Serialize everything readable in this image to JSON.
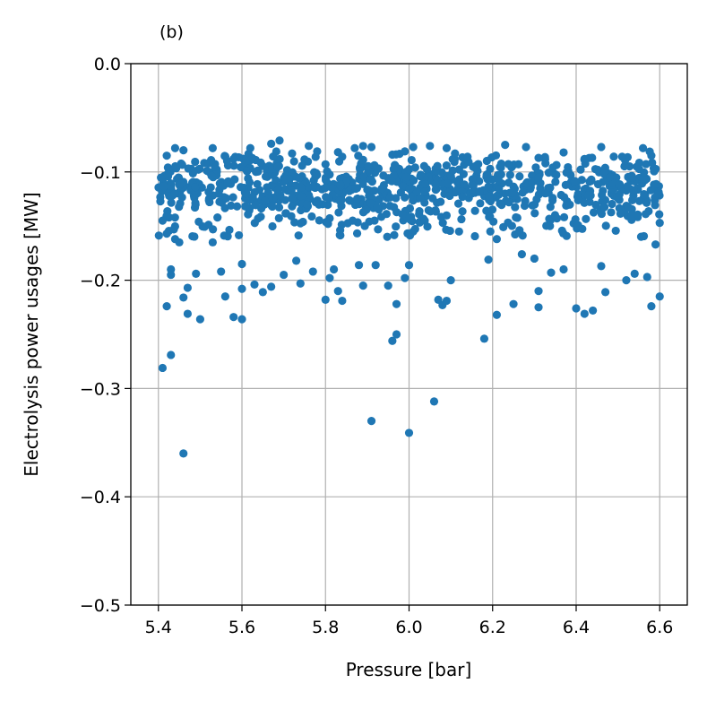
{
  "chart_data": {
    "type": "scatter",
    "panel_label": "(b)",
    "title": "",
    "xlabel": "Pressure [bar]",
    "ylabel": "Electrolysis power usages [MW]",
    "xlim": [
      5.334,
      6.666
    ],
    "ylim": [
      -0.5,
      0.0
    ],
    "xticks": [
      5.4,
      5.6,
      5.8,
      6.0,
      6.2,
      6.4,
      6.6
    ],
    "xtick_labels": [
      "5.4",
      "5.6",
      "5.8",
      "6.0",
      "6.2",
      "6.4",
      "6.6"
    ],
    "yticks": [
      0.0,
      -0.1,
      -0.2,
      -0.3,
      -0.4,
      -0.5
    ],
    "ytick_labels": [
      "0.0",
      "−0.1",
      "−0.2",
      "−0.3",
      "−0.4",
      "−0.5"
    ],
    "grid": true,
    "marker_color": "#1f77b4",
    "series": [
      {
        "points": [
          [
            5.41,
            -0.281
          ],
          [
            5.41,
            -0.145
          ],
          [
            5.42,
            -0.157
          ],
          [
            5.42,
            -0.224
          ],
          [
            5.43,
            -0.19
          ],
          [
            5.43,
            -0.269
          ],
          [
            5.43,
            -0.195
          ],
          [
            5.44,
            -0.162
          ],
          [
            5.45,
            -0.165
          ],
          [
            5.46,
            -0.36
          ],
          [
            5.46,
            -0.216
          ],
          [
            5.47,
            -0.231
          ],
          [
            5.47,
            -0.207
          ],
          [
            5.49,
            -0.194
          ],
          [
            5.5,
            -0.236
          ],
          [
            5.53,
            -0.165
          ],
          [
            5.55,
            -0.192
          ],
          [
            5.56,
            -0.215
          ],
          [
            5.58,
            -0.234
          ],
          [
            5.6,
            -0.236
          ],
          [
            5.6,
            -0.208
          ],
          [
            5.6,
            -0.185
          ],
          [
            5.63,
            -0.204
          ],
          [
            5.65,
            -0.211
          ],
          [
            5.67,
            -0.206
          ],
          [
            5.7,
            -0.195
          ],
          [
            5.73,
            -0.182
          ],
          [
            5.74,
            -0.203
          ],
          [
            5.77,
            -0.192
          ],
          [
            5.8,
            -0.218
          ],
          [
            5.81,
            -0.198
          ],
          [
            5.82,
            -0.19
          ],
          [
            5.83,
            -0.21
          ],
          [
            5.84,
            -0.219
          ],
          [
            5.88,
            -0.186
          ],
          [
            5.89,
            -0.205
          ],
          [
            5.91,
            -0.33
          ],
          [
            5.92,
            -0.186
          ],
          [
            5.95,
            -0.205
          ],
          [
            5.96,
            -0.256
          ],
          [
            5.97,
            -0.25
          ],
          [
            5.97,
            -0.222
          ],
          [
            5.99,
            -0.198
          ],
          [
            6.0,
            -0.341
          ],
          [
            6.0,
            -0.186
          ],
          [
            6.06,
            -0.312
          ],
          [
            6.07,
            -0.218
          ],
          [
            6.08,
            -0.223
          ],
          [
            6.09,
            -0.219
          ],
          [
            6.1,
            -0.2
          ],
          [
            6.18,
            -0.254
          ],
          [
            6.19,
            -0.181
          ],
          [
            6.21,
            -0.232
          ],
          [
            6.21,
            -0.162
          ],
          [
            6.25,
            -0.222
          ],
          [
            6.27,
            -0.176
          ],
          [
            6.3,
            -0.18
          ],
          [
            6.31,
            -0.21
          ],
          [
            6.31,
            -0.225
          ],
          [
            6.34,
            -0.193
          ],
          [
            6.37,
            -0.19
          ],
          [
            6.4,
            -0.226
          ],
          [
            6.42,
            -0.231
          ],
          [
            6.44,
            -0.228
          ],
          [
            6.46,
            -0.187
          ],
          [
            6.47,
            -0.211
          ],
          [
            6.52,
            -0.2
          ],
          [
            6.54,
            -0.194
          ],
          [
            6.57,
            -0.197
          ],
          [
            6.58,
            -0.224
          ],
          [
            6.59,
            -0.167
          ],
          [
            6.6,
            -0.215
          ],
          [
            6.6,
            -0.147
          ],
          [
            5.44,
            -0.078
          ],
          [
            5.46,
            -0.08
          ],
          [
            5.53,
            -0.078
          ],
          [
            5.62,
            -0.078
          ],
          [
            5.67,
            -0.074
          ],
          [
            5.69,
            -0.071
          ],
          [
            5.76,
            -0.076
          ],
          [
            5.78,
            -0.081
          ],
          [
            5.87,
            -0.078
          ],
          [
            5.89,
            -0.076
          ],
          [
            5.91,
            -0.077
          ],
          [
            5.99,
            -0.081
          ],
          [
            6.01,
            -0.077
          ],
          [
            6.05,
            -0.076
          ],
          [
            6.09,
            -0.078
          ],
          [
            6.11,
            -0.083
          ],
          [
            6.23,
            -0.075
          ],
          [
            6.28,
            -0.077
          ],
          [
            6.37,
            -0.082
          ],
          [
            6.46,
            -0.077
          ],
          [
            6.56,
            -0.078
          ],
          [
            6.58,
            -0.085
          ],
          [
            5.42,
            -0.085
          ],
          [
            5.52,
            -0.092
          ],
          [
            5.58,
            -0.088
          ],
          [
            5.72,
            -0.083
          ],
          [
            5.84,
            -0.086
          ],
          [
            5.96,
            -0.084
          ],
          [
            6.14,
            -0.086
          ],
          [
            6.31,
            -0.087
          ],
          [
            6.42,
            -0.088
          ],
          [
            6.51,
            -0.086
          ]
        ]
      }
    ],
    "cluster_range": [
      -0.16,
      -0.085
    ],
    "cluster_center": -0.113
  }
}
